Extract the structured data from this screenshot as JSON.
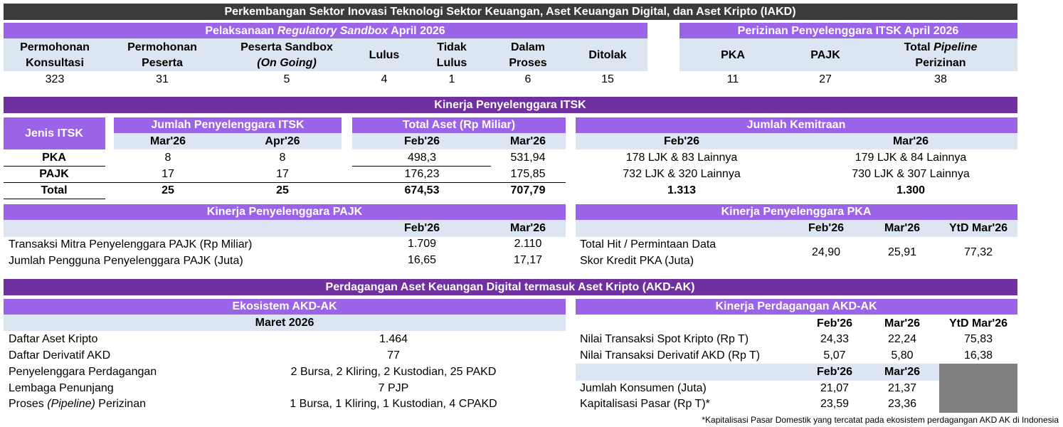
{
  "title": "Perkembangan Sektor Inovasi Teknologi Sektor Keuangan, Aset Keuangan Digital, dan Aset Kripto (IAKD)",
  "sandbox": {
    "title": [
      "Pelaksanaan",
      "Regulatory Sandbox",
      "April 2026"
    ],
    "headers": [
      [
        "Permohonan",
        "Konsultasi"
      ],
      [
        "Permohonan",
        "Peserta"
      ],
      [
        "Peserta Sandbox",
        "(On Going)"
      ],
      [
        "Lulus"
      ],
      [
        "Tidak",
        "Lulus"
      ],
      [
        "Dalam",
        "Proses"
      ],
      [
        "Ditolak"
      ]
    ],
    "values": [
      323,
      31,
      5,
      4,
      1,
      6,
      15
    ]
  },
  "perizinan": {
    "title": "Perizinan Penyelenggara ITSK April 2026",
    "headers": [
      [
        "PKA"
      ],
      [
        "PAJK"
      ],
      [
        [
          "Total",
          "Pipeline"
        ],
        "Perizinan"
      ]
    ],
    "values": [
      11,
      27,
      38
    ]
  },
  "kinerja_itsk": {
    "title": "Kinerja Penyelenggara ITSK",
    "jenis_header": "Jenis ITSK",
    "jumlah": {
      "title": "Jumlah Penyelenggara ITSK",
      "periods": [
        "Mar'26",
        "Apr'26"
      ]
    },
    "aset": {
      "title": "Total Aset (Rp Miliar)",
      "periods": [
        "Feb'26",
        "Mar'26"
      ]
    },
    "kemitraan": {
      "title": "Jumlah Kemitraan",
      "periods": [
        "Feb'26",
        "Mar'26"
      ]
    },
    "rows": [
      {
        "label": "PKA",
        "jumlah": [
          8,
          8
        ],
        "aset": [
          "498,3",
          "531,94"
        ],
        "kemitraan": [
          "178 LJK & 83 Lainnya",
          "179 LJK & 84 Lainnya"
        ]
      },
      {
        "label": "PAJK",
        "jumlah": [
          17,
          17
        ],
        "aset": [
          "176,23",
          "175,85"
        ],
        "kemitraan": [
          "732 LJK & 320 Lainnya",
          "730 LJK & 307 Lainnya"
        ]
      },
      {
        "label": "Total",
        "jumlah": [
          25,
          25
        ],
        "aset": [
          "674,53",
          "707,79"
        ],
        "kemitraan": [
          "1.313",
          "1.300"
        ]
      }
    ]
  },
  "pajk": {
    "title": "Kinerja Penyelenggara PAJK",
    "periods": [
      "Feb'26",
      "Mar'26"
    ],
    "rows": [
      {
        "label": "Transaksi Mitra Penyelenggara PAJK (Rp Miliar)",
        "values": [
          "1.709",
          "2.110"
        ]
      },
      {
        "label": "Jumlah Pengguna Penyelenggara PAJK (Juta)",
        "values": [
          "16,65",
          "17,17"
        ]
      }
    ]
  },
  "pka": {
    "title": "Kinerja Penyelenggara PKA",
    "periods": [
      "Feb'26",
      "Mar'26",
      "YtD Mar'26"
    ],
    "rows": [
      {
        "label": [
          "Total Hit / Permintaan Data",
          "Skor Kredit PKA (Juta)"
        ],
        "values": [
          "24,90",
          "25,91",
          "77,32"
        ]
      }
    ]
  },
  "akd": {
    "title": "Perdagangan Aset Keuangan Digital termasuk Aset Kripto (AKD-AK)",
    "ekosistem": {
      "title": "Ekosistem AKD-AK",
      "period": "Maret 2026",
      "rows": [
        {
          "label": "Daftar Aset Kripto",
          "value": "1.464"
        },
        {
          "label": "Daftar Derivatif AKD",
          "value": 77
        },
        {
          "label": "Penyelenggara Perdagangan",
          "value": "2 Bursa, 2 Kliring, 2 Kustodian, 25 PAKD"
        },
        {
          "label": "Lembaga Penunjang",
          "value": "7 PJP"
        },
        {
          "label": [
            "Proses",
            "(Pipeline)",
            "Perizinan"
          ],
          "value": "1 Bursa, 1 Kliring, 1 Kustodian, 4 CPAKD"
        }
      ]
    },
    "kinerja": {
      "title": "Kinerja Perdagangan AKD-AK",
      "periods": [
        "Feb'26",
        "Mar'26",
        "YtD Mar'26"
      ],
      "rows": [
        {
          "label": "Nilai Transaksi Spot Kripto (Rp T)",
          "values": [
            "24,33",
            "22,24",
            "75,83"
          ]
        },
        {
          "label": "Nilai Transaksi Derivatif AKD (Rp T)",
          "values": [
            "5,07",
            "5,80",
            "16,38"
          ]
        }
      ],
      "periods2": [
        "Feb'26",
        "Mar'26"
      ],
      "rows2": [
        {
          "label": "Jumlah Konsumen (Juta)",
          "values": [
            "21,07",
            "21,37"
          ]
        },
        {
          "label": "Kapitalisasi Pasar (Rp T)*",
          "values": [
            "23,59",
            "23,36"
          ]
        }
      ]
    },
    "footnote": "*Kapitalisasi Pasar Domestik yang tercatat pada ekosistem perdagangan AKD AK di Indonesia"
  }
}
